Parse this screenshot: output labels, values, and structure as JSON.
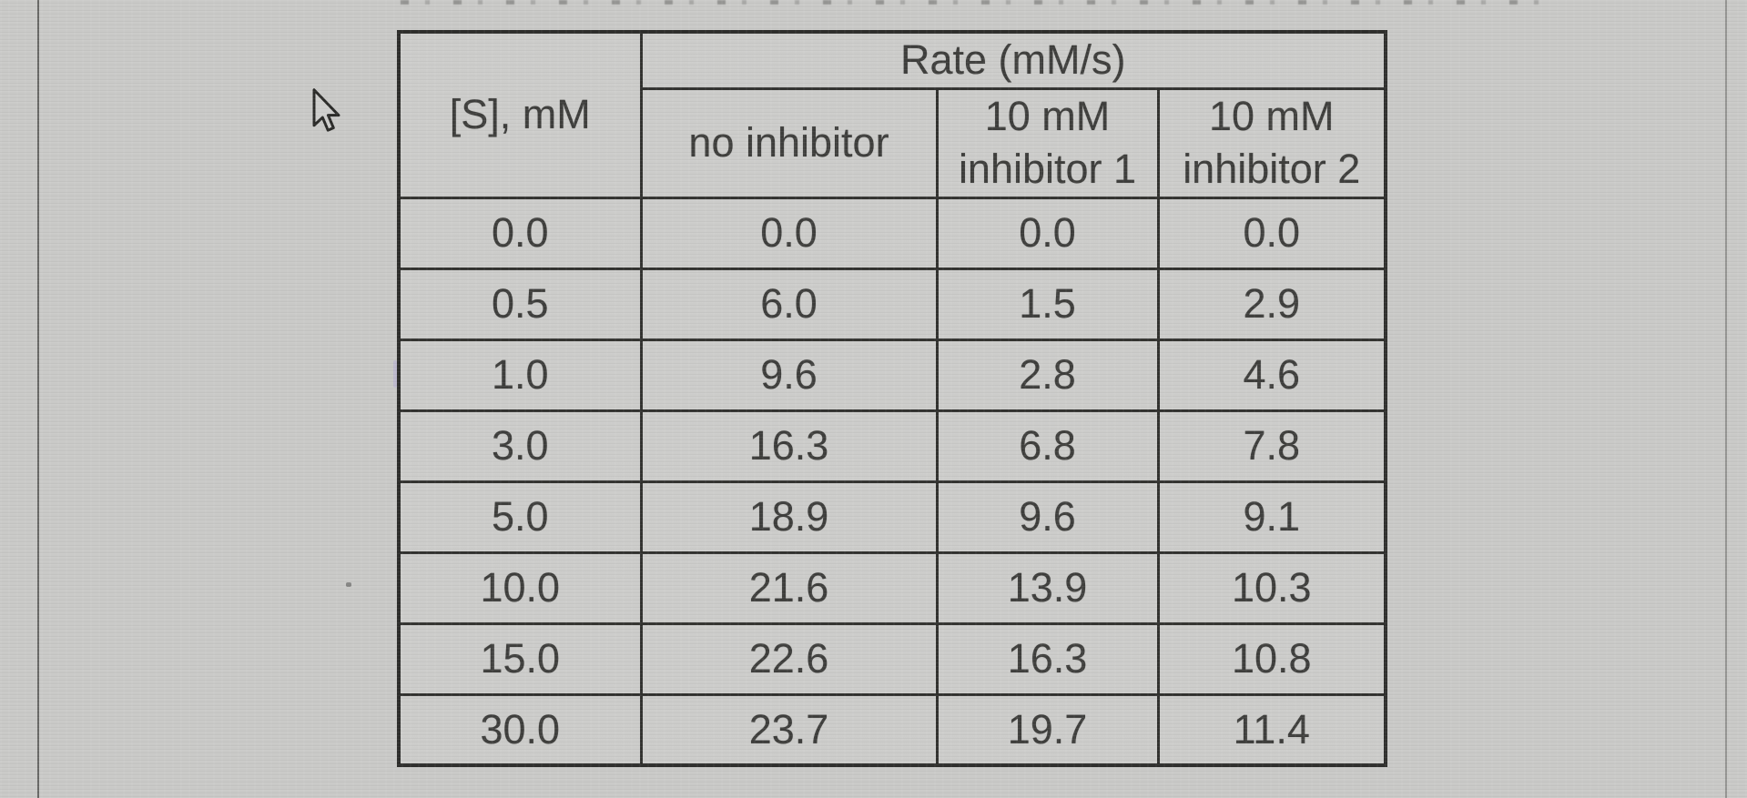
{
  "page": {
    "background_color": "#c9c9c7",
    "left_edge_line_color": "#343432",
    "cursor_icon": "arrow-cursor"
  },
  "table": {
    "rate_header": "Rate (mM/s)",
    "substrate_header": "[S], mM",
    "subheaders": {
      "no_inhibitor": "no inhibitor",
      "inhibitor1_line1": "10 mM",
      "inhibitor1_line2": "inhibitor 1",
      "inhibitor2_line1": "10 mM",
      "inhibitor2_line2": "inhibitor 2"
    },
    "border_color": "#32322f",
    "cell_background": "#ccccca",
    "text_color": "#3e3e3c"
  },
  "chart_data": {
    "type": "table",
    "title": "Rate (mM/s)",
    "columns": [
      "[S], mM",
      "no inhibitor",
      "10 mM inhibitor 1",
      "10 mM inhibitor 2"
    ],
    "rows": [
      [
        "0.0",
        "0.0",
        "0.0",
        "0.0"
      ],
      [
        "0.5",
        "6.0",
        "1.5",
        "2.9"
      ],
      [
        "1.0",
        "9.6",
        "2.8",
        "4.6"
      ],
      [
        "3.0",
        "16.3",
        "6.8",
        "7.8"
      ],
      [
        "5.0",
        "18.9",
        "9.6",
        "9.1"
      ],
      [
        "10.0",
        "21.6",
        "13.9",
        "10.3"
      ],
      [
        "15.0",
        "22.6",
        "16.3",
        "10.8"
      ],
      [
        "30.0",
        "23.7",
        "19.7",
        "11.4"
      ]
    ]
  }
}
